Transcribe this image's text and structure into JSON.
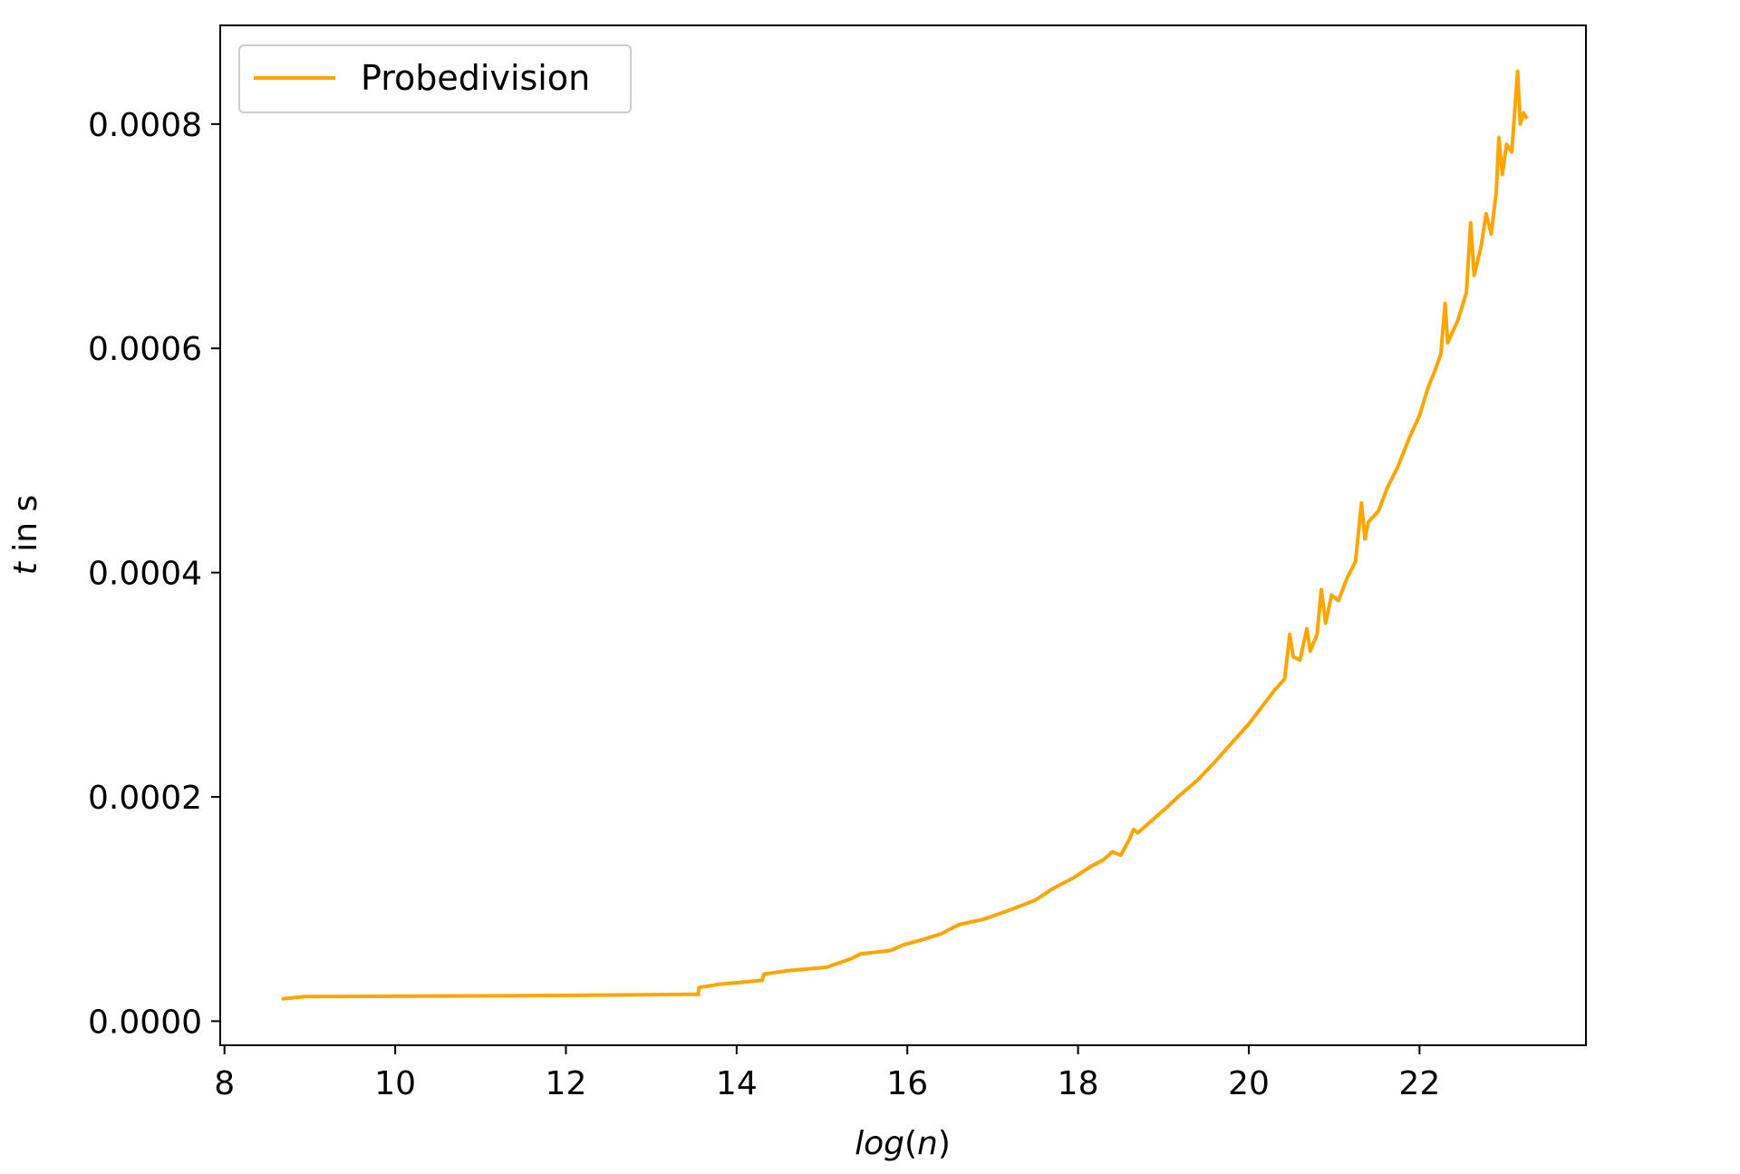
{
  "chart_data": {
    "type": "line",
    "xlabel": {
      "italic": "log",
      "paren_open": "(",
      "var": "n",
      "paren_close": ")"
    },
    "ylabel": {
      "var": "t",
      "rest": " in s"
    },
    "xlim": [
      7.95,
      23.95
    ],
    "ylim": [
      -2.15e-05,
      0.000888
    ],
    "xticks": [
      8,
      10,
      12,
      14,
      16,
      18,
      20,
      22
    ],
    "xtick_labels": [
      "8",
      "10",
      "12",
      "14",
      "16",
      "18",
      "20",
      "22"
    ],
    "yticks": [
      0,
      0.0002,
      0.0004,
      0.0006,
      0.0008
    ],
    "ytick_labels": [
      "0.0000",
      "0.0002",
      "0.0004",
      "0.0006",
      "0.0008"
    ],
    "grid": false,
    "legend": {
      "position": "top-left"
    },
    "series": [
      {
        "name": "Probedivision",
        "color": "#ffa500",
        "points": [
          [
            8.67,
            2e-05
          ],
          [
            8.95,
            2.2e-05
          ],
          [
            10.0,
            2.22e-05
          ],
          [
            11.0,
            2.26e-05
          ],
          [
            12.0,
            2.3e-05
          ],
          [
            13.0,
            2.35e-05
          ],
          [
            13.55,
            2.4e-05
          ],
          [
            13.56,
            3e-05
          ],
          [
            13.8,
            3.3e-05
          ],
          [
            14.1,
            3.5e-05
          ],
          [
            14.3,
            3.65e-05
          ],
          [
            14.32,
            4.2e-05
          ],
          [
            14.6,
            4.5e-05
          ],
          [
            15.05,
            4.8e-05
          ],
          [
            15.2,
            5.2e-05
          ],
          [
            15.35,
            5.6e-05
          ],
          [
            15.45,
            6e-05
          ],
          [
            15.8,
            6.3e-05
          ],
          [
            15.95,
            6.8e-05
          ],
          [
            16.15,
            7.2e-05
          ],
          [
            16.4,
            7.8e-05
          ],
          [
            16.6,
            8.6e-05
          ],
          [
            16.9,
            9.1e-05
          ],
          [
            17.2,
            9.9e-05
          ],
          [
            17.5,
            0.000108
          ],
          [
            17.7,
            0.000118
          ],
          [
            17.95,
            0.000128
          ],
          [
            18.15,
            0.000138
          ],
          [
            18.3,
            0.000144
          ],
          [
            18.4,
            0.000151
          ],
          [
            18.5,
            0.000148
          ],
          [
            18.6,
            0.000162
          ],
          [
            18.65,
            0.000171
          ],
          [
            18.7,
            0.000168
          ],
          [
            18.85,
            0.000178
          ],
          [
            19.0,
            0.000188
          ],
          [
            19.2,
            0.000202
          ],
          [
            19.4,
            0.000215
          ],
          [
            19.6,
            0.000231
          ],
          [
            19.8,
            0.000248
          ],
          [
            20.0,
            0.000265
          ],
          [
            20.15,
            0.00028
          ],
          [
            20.3,
            0.000295
          ],
          [
            20.42,
            0.000305
          ],
          [
            20.48,
            0.000345
          ],
          [
            20.52,
            0.000325
          ],
          [
            20.6,
            0.000322
          ],
          [
            20.68,
            0.00035
          ],
          [
            20.72,
            0.00033
          ],
          [
            20.8,
            0.000345
          ],
          [
            20.85,
            0.000385
          ],
          [
            20.9,
            0.000355
          ],
          [
            20.97,
            0.00038
          ],
          [
            21.05,
            0.000375
          ],
          [
            21.15,
            0.000395
          ],
          [
            21.25,
            0.00041
          ],
          [
            21.32,
            0.000462
          ],
          [
            21.36,
            0.00043
          ],
          [
            21.4,
            0.000445
          ],
          [
            21.52,
            0.000455
          ],
          [
            21.62,
            0.000475
          ],
          [
            21.75,
            0.000495
          ],
          [
            21.88,
            0.00052
          ],
          [
            22.0,
            0.00054
          ],
          [
            22.1,
            0.000565
          ],
          [
            22.18,
            0.00058
          ],
          [
            22.25,
            0.000595
          ],
          [
            22.3,
            0.00064
          ],
          [
            22.33,
            0.000605
          ],
          [
            22.45,
            0.000625
          ],
          [
            22.55,
            0.00065
          ],
          [
            22.6,
            0.000712
          ],
          [
            22.64,
            0.000665
          ],
          [
            22.72,
            0.00069
          ],
          [
            22.78,
            0.00072
          ],
          [
            22.84,
            0.000702
          ],
          [
            22.9,
            0.00074
          ],
          [
            22.93,
            0.000788
          ],
          [
            22.97,
            0.000755
          ],
          [
            23.02,
            0.000782
          ],
          [
            23.08,
            0.000775
          ],
          [
            23.15,
            0.000847
          ],
          [
            23.18,
            0.0008
          ],
          [
            23.22,
            0.00081
          ],
          [
            23.26,
            0.000805
          ]
        ]
      }
    ]
  }
}
